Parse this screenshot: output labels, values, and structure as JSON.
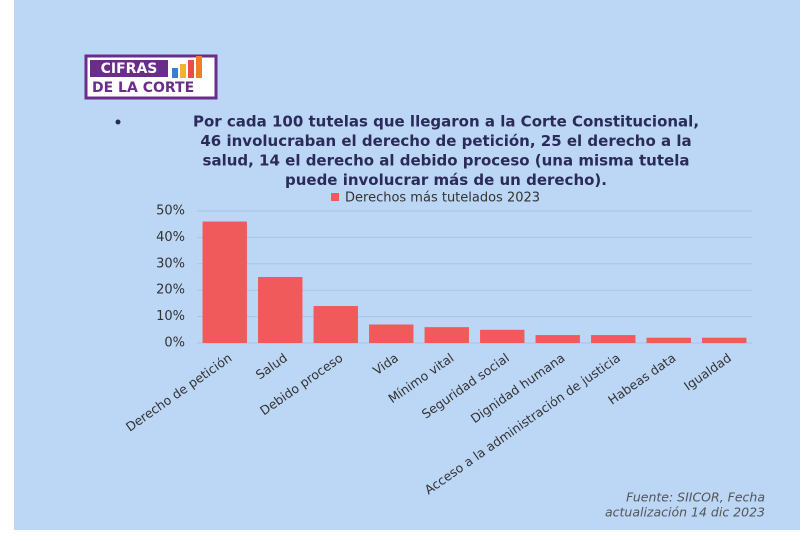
{
  "logo": [
    "CIFRAS",
    "DE LA CORTE"
  ],
  "chart_data": {
    "type": "bar",
    "title": [
      "Por cada 100 tutelas que llegaron a la Corte Constitucional,",
      "46 involucraban el derecho de petición, 25 el derecho a la",
      "salud, 14 el derecho al debido proceso (una misma tutela",
      "puede involucrar más de un derecho)."
    ],
    "categories": [
      "Derecho de petición",
      "Salud",
      "Debido proceso",
      "Vida",
      "Mínimo vital",
      "Seguridad social",
      "Dignidad humana",
      "Acceso a la administración de justicia",
      "Habeas data",
      "Igualdad"
    ],
    "series": [
      {
        "name": "Derechos más tutelados 2023",
        "color": "#f05a5a",
        "values": [
          46,
          25,
          14,
          7,
          6,
          5,
          3,
          3,
          2,
          2
        ]
      }
    ],
    "ylim": [
      0,
      50
    ],
    "yticks": [
      {
        "value": 0,
        "label": "0%"
      },
      {
        "value": 10,
        "label": "10%"
      },
      {
        "value": 20,
        "label": "20%"
      },
      {
        "value": 30,
        "label": "30%"
      },
      {
        "value": 40,
        "label": "40%"
      },
      {
        "value": 50,
        "label": "50%"
      }
    ],
    "grid": true,
    "legend": "top",
    "source": [
      "Fuente: SIICOR, Fecha",
      "actualización 14 dic 2023"
    ]
  }
}
